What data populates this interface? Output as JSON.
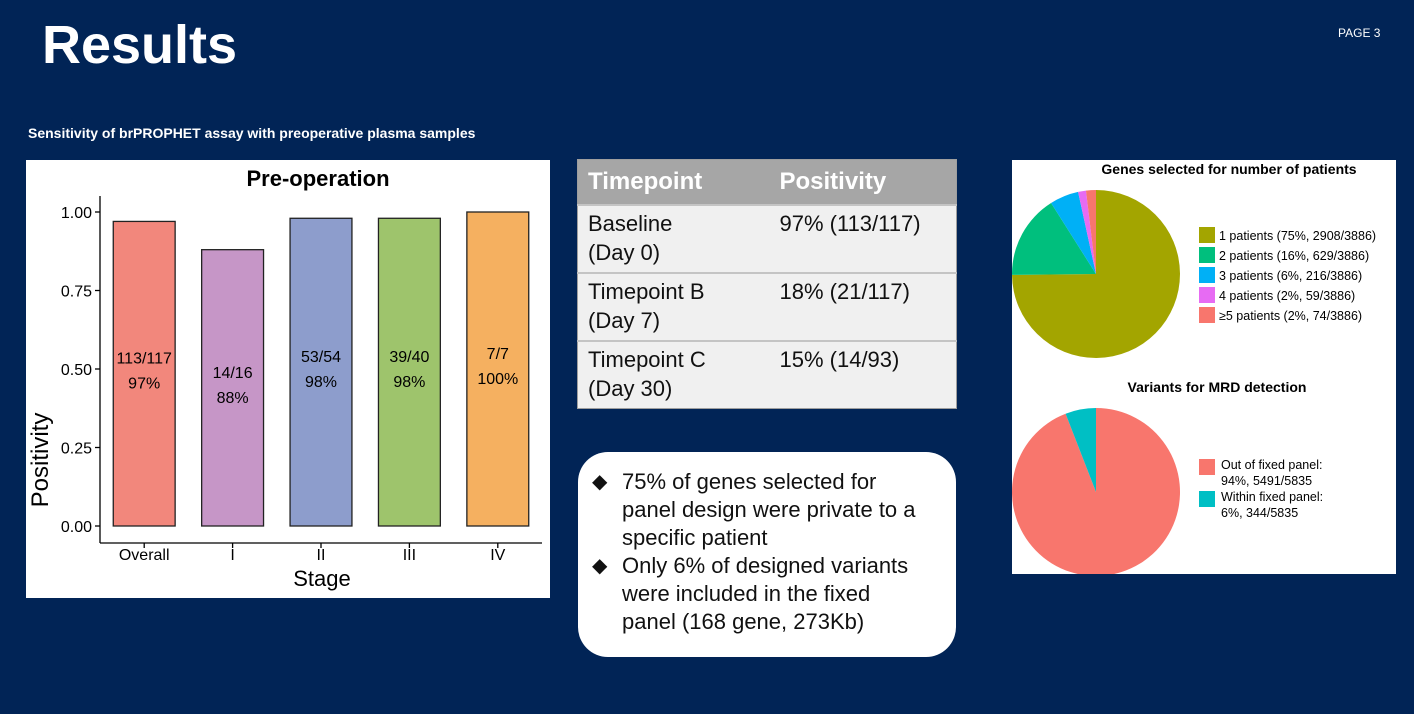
{
  "header": {
    "title": "Results",
    "page": "PAGE 3"
  },
  "subtitle": "Sensitivity  of brPROPHET assay  with preoperative  plasma samples",
  "chart_data": [
    {
      "type": "bar",
      "title": "Pre-operation",
      "xlabel": "Stage",
      "ylabel": "Positivity",
      "ylim": [
        0,
        1
      ],
      "yticks": [
        "0.00",
        "0.25",
        "0.50",
        "0.75",
        "1.00"
      ],
      "categories": [
        "Overall",
        "I",
        "II",
        "III",
        "IV"
      ],
      "values": [
        0.97,
        0.88,
        0.98,
        0.98,
        1.0
      ],
      "colors": [
        "#f2877c",
        "#c696c7",
        "#8d9dcc",
        "#9ec46c",
        "#f5b060"
      ],
      "labels": [
        {
          "count": "113/117",
          "pct": "97%"
        },
        {
          "count": "14/16",
          "pct": "88%"
        },
        {
          "count": "53/54",
          "pct": "98%"
        },
        {
          "count": "39/40",
          "pct": "98%"
        },
        {
          "count": "7/7",
          "pct": "100%"
        }
      ]
    },
    {
      "type": "pie",
      "title": "Genes selected for number of patients",
      "slices": [
        {
          "label": "1 patients (75%, 2908/3886)",
          "value": 2908,
          "color": "#a3a500"
        },
        {
          "label": "2 patients (16%, 629/3886)",
          "value": 629,
          "color": "#00bf7d"
        },
        {
          "label": "3 patients (6%, 216/3886)",
          "value": 216,
          "color": "#00b0f6"
        },
        {
          "label": "4 patients (2%, 59/3886)",
          "value": 59,
          "color": "#e76bf3"
        },
        {
          "label": "≥5 patients (2%, 74/3886)",
          "value": 74,
          "color": "#f8766d"
        }
      ]
    },
    {
      "type": "pie",
      "title": "Variants for MRD detection",
      "slices": [
        {
          "label": "Out of fixed panel: 94%, 5491/5835",
          "line1": "Out of fixed panel:",
          "line2": "94%, 5491/5835",
          "value": 5491,
          "color": "#f8766d"
        },
        {
          "label": "Within fixed panel: 6%, 344/5835",
          "line1": "Within fixed panel:",
          "line2": "6%, 344/5835",
          "value": 344,
          "color": "#00bfc4"
        }
      ]
    }
  ],
  "table": {
    "headers": [
      "Timepoint",
      "Positivity"
    ],
    "rows": [
      {
        "tp1": "Baseline",
        "tp2": "(Day 0)",
        "pos": "97% (113/117)"
      },
      {
        "tp1": "Timepoint B",
        "tp2": "(Day 7)",
        "pos": "18% (21/117)"
      },
      {
        "tp1": "Timepoint C",
        "tp2": "(Day 30)",
        "pos": "15% (14/93)"
      }
    ]
  },
  "notes": {
    "bullet": "◆",
    "items": [
      {
        "lines": [
          "75% of genes selected for",
          "panel design were private to a",
          "specific patient"
        ]
      },
      {
        "lines": [
          "Only 6% of designed variants",
          "were included in the fixed",
          "panel (168 gene, 273Kb)"
        ]
      }
    ]
  }
}
